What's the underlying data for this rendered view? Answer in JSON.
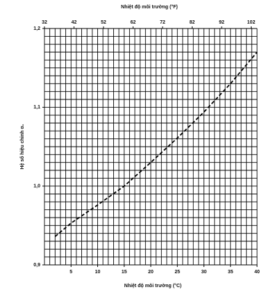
{
  "chart_data": {
    "type": "line",
    "title": "Nhiệt độ môi trường (°F)",
    "xlabel": "Nhiệt độ môi trường (°C)",
    "ylabel": "Hệ số hiệu chỉnh α₁",
    "x": [
      2,
      5,
      10,
      15,
      20,
      25,
      30,
      35,
      40
    ],
    "series": [
      {
        "color": "#000000",
        "values": [
          0.936,
          0.953,
          0.976,
          1.0,
          1.03,
          1.061,
          1.094,
          1.13,
          1.17
        ]
      }
    ],
    "xlim": [
      0,
      40
    ],
    "xticks": [
      5,
      10,
      15,
      20,
      25,
      30,
      35,
      40
    ],
    "x2lim": [
      32,
      104
    ],
    "x2ticks": [
      32,
      42,
      52,
      62,
      72,
      82,
      92,
      102
    ],
    "ylim": [
      0.9,
      1.2
    ],
    "yticks": [
      {
        "value": 0.9,
        "label": "0,9"
      },
      {
        "value": 1.0,
        "label": "1,0"
      },
      {
        "value": 1.1,
        "label": "1,1"
      },
      {
        "value": 1.2,
        "label": "1,2"
      }
    ],
    "xgrid": [
      0,
      1,
      2,
      3,
      4,
      5,
      6,
      7,
      8,
      9,
      10,
      11,
      12,
      13,
      14,
      15,
      16,
      17,
      18,
      19,
      20,
      21,
      22,
      23,
      24,
      25,
      26,
      27,
      28,
      29,
      30,
      31,
      32,
      33,
      34,
      35,
      36,
      37,
      38,
      39,
      40
    ],
    "ygrid": [
      0.9,
      0.91,
      0.92,
      0.93,
      0.94,
      0.95,
      0.96,
      0.97,
      0.98,
      0.99,
      1.0,
      1.01,
      1.02,
      1.03,
      1.04,
      1.05,
      1.06,
      1.07,
      1.08,
      1.09,
      1.1,
      1.11,
      1.12,
      1.13,
      1.14,
      1.15,
      1.16,
      1.17,
      1.18,
      1.19,
      1.2
    ],
    "grid": true
  }
}
